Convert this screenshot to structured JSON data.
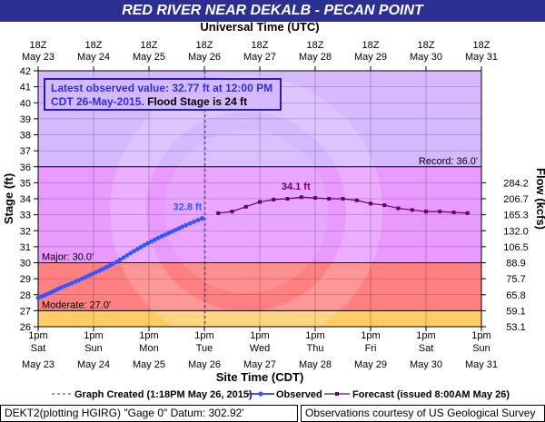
{
  "header": {
    "title": "RED RIVER NEAR DEKALB - PECAN POINT"
  },
  "info_box": {
    "line1": "Latest observed value: 32.77 ft at 12:00 PM",
    "line2_date": "CDT 26-May-2015.",
    "line2_flood": "Flood Stage is 24 ft"
  },
  "footer": {
    "left": "DEKT2(plotting HGIRG) \"Gage 0\" Datum: 302.92'",
    "right": "Observations courtesy of US Geological Survey"
  },
  "colors": {
    "title_bg": "#2b2f8f",
    "record_band": "#d6b8ff",
    "above_flood_band": "#e89aff",
    "major_band": "#ff8080",
    "moderate_band": "#ffcc66",
    "observed": "#3355ff",
    "forecast": "#660066"
  },
  "chart_data": {
    "type": "line",
    "top_axis_title": "Universal Time (UTC)",
    "bottom_axis_title": "Site Time (CDT)",
    "ylabel": "Stage (ft)",
    "y2label": "Flow (kcfs)",
    "ylim": [
      26,
      42
    ],
    "xlim": [
      "2015-05-23 13:00",
      "2015-05-31 13:00"
    ],
    "y_ticks": [
      26,
      27,
      28,
      29,
      30,
      31,
      32,
      33,
      34,
      35,
      36,
      37,
      38,
      39,
      40,
      41,
      42
    ],
    "top_ticks": [
      {
        "line1": "18Z",
        "line2": "May 23"
      },
      {
        "line1": "18Z",
        "line2": "May 24"
      },
      {
        "line1": "18Z",
        "line2": "May 25"
      },
      {
        "line1": "18Z",
        "line2": "May 26"
      },
      {
        "line1": "18Z",
        "line2": "May 27"
      },
      {
        "line1": "18Z",
        "line2": "May 28"
      },
      {
        "line1": "18Z",
        "line2": "May 29"
      },
      {
        "line1": "18Z",
        "line2": "May 30"
      },
      {
        "line1": "18Z",
        "line2": "May 31"
      }
    ],
    "bottom_ticks": [
      {
        "line1": "1pm",
        "line2": "Sat",
        "line3": "May 23"
      },
      {
        "line1": "1pm",
        "line2": "Sun",
        "line3": "May 24"
      },
      {
        "line1": "1pm",
        "line2": "Mon",
        "line3": "May 25"
      },
      {
        "line1": "1pm",
        "line2": "Tue",
        "line3": "May 26"
      },
      {
        "line1": "1pm",
        "line2": "Wed",
        "line3": "May 27"
      },
      {
        "line1": "1pm",
        "line2": "Thu",
        "line3": "May 28"
      },
      {
        "line1": "1pm",
        "line2": "Fri",
        "line3": "May 29"
      },
      {
        "line1": "1pm",
        "line2": "Sat",
        "line3": "May 30"
      },
      {
        "line1": "1pm",
        "line2": "Sun",
        "line3": "May 31"
      }
    ],
    "flow_ticks": [
      {
        "stage": 26,
        "label": "53.1"
      },
      {
        "stage": 27,
        "label": "59.1"
      },
      {
        "stage": 28,
        "label": "65.8"
      },
      {
        "stage": 29,
        "label": "75.7"
      },
      {
        "stage": 30,
        "label": "88.9"
      },
      {
        "stage": 31,
        "label": "106.5"
      },
      {
        "stage": 32,
        "label": "132.0"
      },
      {
        "stage": 33,
        "label": "165.3"
      },
      {
        "stage": 34,
        "label": "206.7"
      },
      {
        "stage": 35,
        "label": "284.2"
      }
    ],
    "thresholds": [
      {
        "name": "Record",
        "label": "Record: 36.0'",
        "value": 36.0
      },
      {
        "name": "Major",
        "label": "Major: 30.0'",
        "value": 30.0
      },
      {
        "name": "Moderate",
        "label": "Moderate: 27.0'",
        "value": 27.0
      }
    ],
    "graph_created": "2015-05-26 13:18",
    "legend": [
      {
        "key": "created",
        "label": "Graph Created (1:18PM May 26, 2015)"
      },
      {
        "key": "observed",
        "label": "Observed"
      },
      {
        "key": "forecast",
        "label": "Forecast (issued 8:00AM May 26)"
      }
    ],
    "series": [
      {
        "name": "Observed",
        "peak_label": "32.8 ft",
        "x": [
          "2015-05-23 13:00",
          "2015-05-23 18:00",
          "2015-05-23 23:00",
          "2015-05-24 05:00",
          "2015-05-24 11:00",
          "2015-05-24 17:00",
          "2015-05-24 23:00",
          "2015-05-25 05:00",
          "2015-05-25 11:00",
          "2015-05-25 17:00",
          "2015-05-25 23:00",
          "2015-05-26 05:00",
          "2015-05-26 12:00"
        ],
        "y": [
          27.8,
          28.1,
          28.45,
          28.8,
          29.2,
          29.6,
          30.05,
          30.6,
          31.1,
          31.55,
          31.95,
          32.35,
          32.77
        ]
      },
      {
        "name": "Forecast",
        "peak_label": "34.1 ft",
        "x": [
          "2015-05-26 19:00",
          "2015-05-27 01:00",
          "2015-05-27 07:00",
          "2015-05-27 13:00",
          "2015-05-27 19:00",
          "2015-05-28 01:00",
          "2015-05-28 07:00",
          "2015-05-28 13:00",
          "2015-05-28 19:00",
          "2015-05-29 01:00",
          "2015-05-29 07:00",
          "2015-05-29 13:00",
          "2015-05-29 19:00",
          "2015-05-30 01:00",
          "2015-05-30 07:00",
          "2015-05-30 13:00",
          "2015-05-30 19:00",
          "2015-05-31 01:00",
          "2015-05-31 07:00"
        ],
        "y": [
          33.1,
          33.2,
          33.5,
          33.8,
          33.95,
          34.0,
          34.1,
          34.05,
          34.0,
          34.0,
          33.9,
          33.7,
          33.6,
          33.4,
          33.3,
          33.2,
          33.2,
          33.15,
          33.1
        ]
      }
    ]
  }
}
